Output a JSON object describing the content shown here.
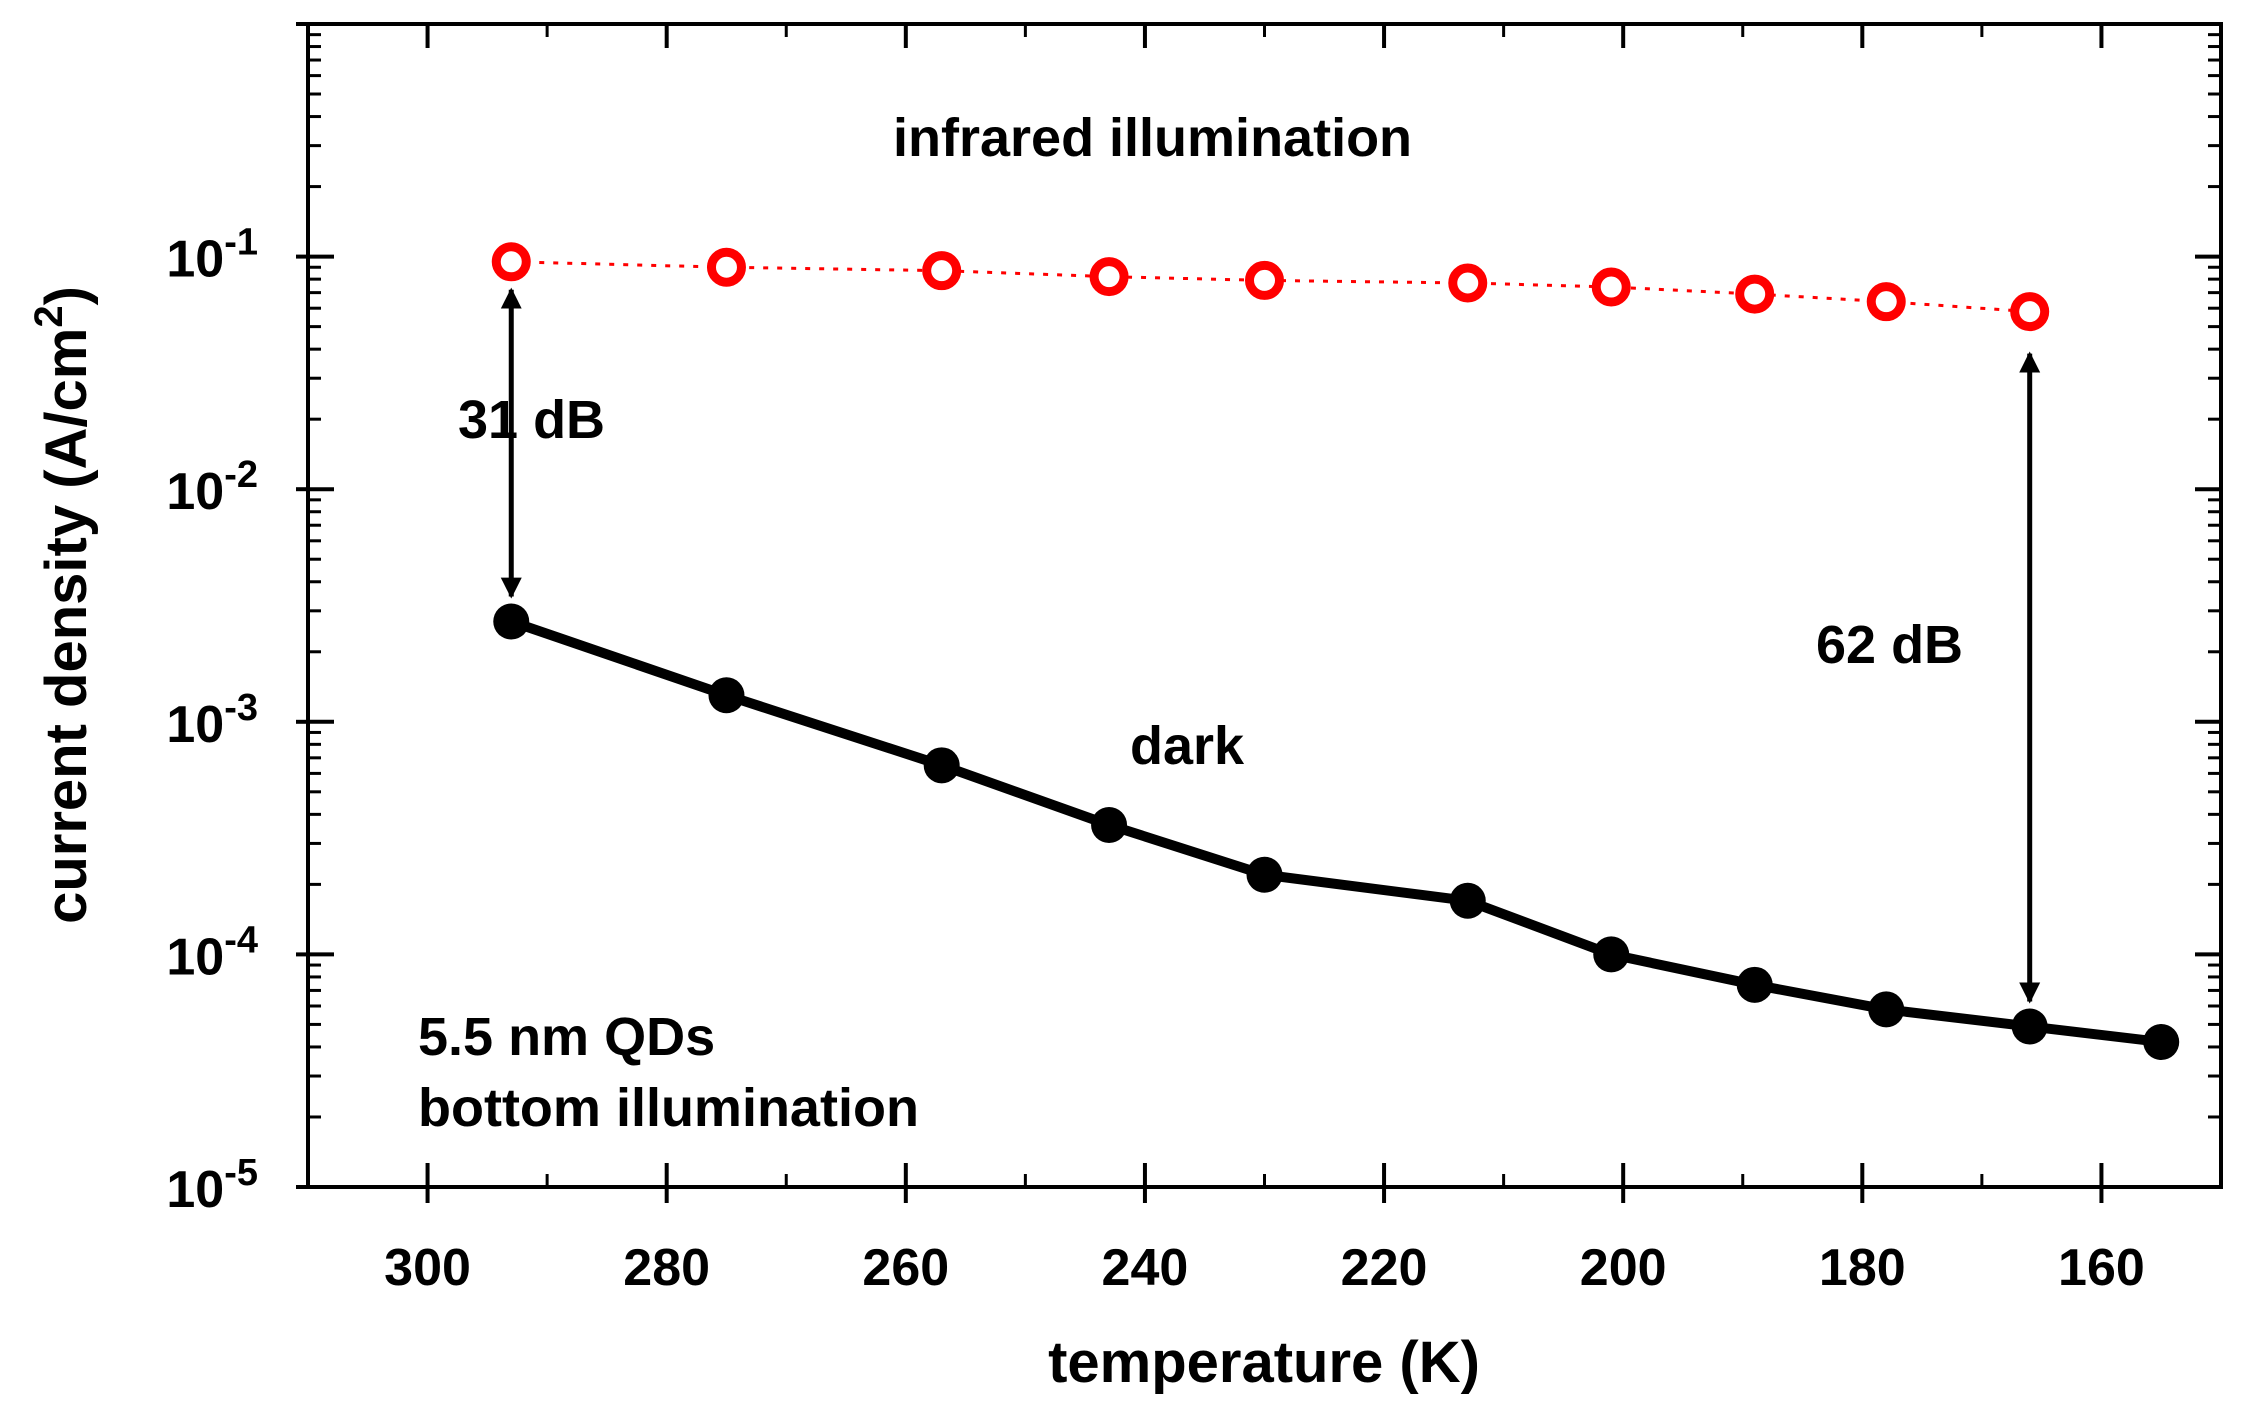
{
  "chart_data": {
    "type": "line",
    "xlabel": "temperature (K)",
    "ylabel": {
      "text": "current density (A/cm",
      "sup": "2",
      "close": ")"
    },
    "xlim": [
      310,
      150
    ],
    "x_reversed": true,
    "ylim": [
      1e-05,
      1
    ],
    "yscale": "log",
    "x_ticks": [
      300,
      280,
      260,
      240,
      220,
      200,
      180,
      160
    ],
    "y_ticks": [
      {
        "value": 1e-05,
        "base": "10",
        "exp": "-5"
      },
      {
        "value": 0.0001,
        "base": "10",
        "exp": "-4"
      },
      {
        "value": 0.001,
        "base": "10",
        "exp": "-3"
      },
      {
        "value": 0.01,
        "base": "10",
        "exp": "-2"
      },
      {
        "value": 0.1,
        "base": "10",
        "exp": "-1"
      }
    ],
    "series": [
      {
        "name": "infrared illumination",
        "color": "#ff0000",
        "marker": "open-circle",
        "line": "dotted",
        "x": [
          293,
          275,
          257,
          243,
          230,
          213,
          201,
          189,
          178,
          166
        ],
        "y": [
          0.095,
          0.09,
          0.087,
          0.082,
          0.079,
          0.077,
          0.074,
          0.069,
          0.064,
          0.058
        ]
      },
      {
        "name": "dark",
        "color": "#000000",
        "marker": "filled-circle",
        "line": "solid",
        "x": [
          293,
          275,
          257,
          243,
          230,
          213,
          201,
          189,
          178,
          166,
          155
        ],
        "y": [
          0.0027,
          0.0013,
          0.00065,
          0.00036,
          0.00022,
          0.00017,
          0.0001,
          7.4e-05,
          5.8e-05,
          4.9e-05,
          4.2e-05
        ]
      }
    ],
    "annotations": {
      "infrared_label": "infrared illumination",
      "dark_label": "dark",
      "sample_line1": "5.5 nm QDs",
      "sample_line2": "bottom illumination",
      "db_31": "31 dB",
      "db_62": "62 dB"
    },
    "arrows": [
      {
        "x": 293,
        "y_from": 0.0027,
        "y_to": 0.095
      },
      {
        "x": 166,
        "y_from": 4.9e-05,
        "y_to": 0.058
      }
    ]
  }
}
